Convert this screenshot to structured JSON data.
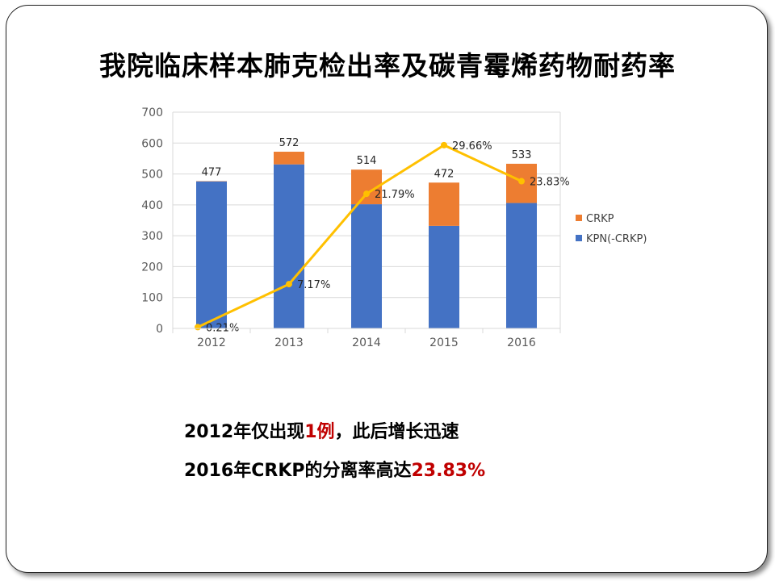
{
  "title": "我院临床样本肺克检出率及碳青霉烯药物耐药率",
  "chart_data": {
    "type": "bar",
    "stacked": true,
    "categories": [
      "2012",
      "2013",
      "2014",
      "2015",
      "2016"
    ],
    "series": [
      {
        "name": "KPN(-CRKP)",
        "values": [
          476,
          531,
          402,
          332,
          406
        ],
        "color": "#4472c4"
      },
      {
        "name": "CRKP",
        "values": [
          1,
          41,
          112,
          140,
          127
        ],
        "color": "#ed7d31"
      }
    ],
    "totals": [
      477,
      572,
      514,
      472,
      533
    ],
    "total_labels": [
      "477",
      "572",
      "514",
      "472",
      "533"
    ],
    "line": {
      "values": [
        0.21,
        7.17,
        21.79,
        29.66,
        23.83
      ],
      "labels": [
        "0.21%",
        "7.17%",
        "21.79%",
        "29.66%",
        "23.83%"
      ],
      "color": "#ffc000"
    },
    "y_ticks": [
      "0",
      "100",
      "200",
      "300",
      "400",
      "500",
      "600",
      "700"
    ],
    "ylim": [
      0,
      700
    ],
    "line_ylim": [
      0,
      35
    ],
    "grid": true,
    "legend_position": "right"
  },
  "notes": {
    "line1": {
      "a": "2012年仅出现",
      "b": "1例",
      "c": "，此后增长迅速"
    },
    "line2": {
      "a": "2016年CRKP的分离率高达",
      "b": "23.83%"
    }
  }
}
